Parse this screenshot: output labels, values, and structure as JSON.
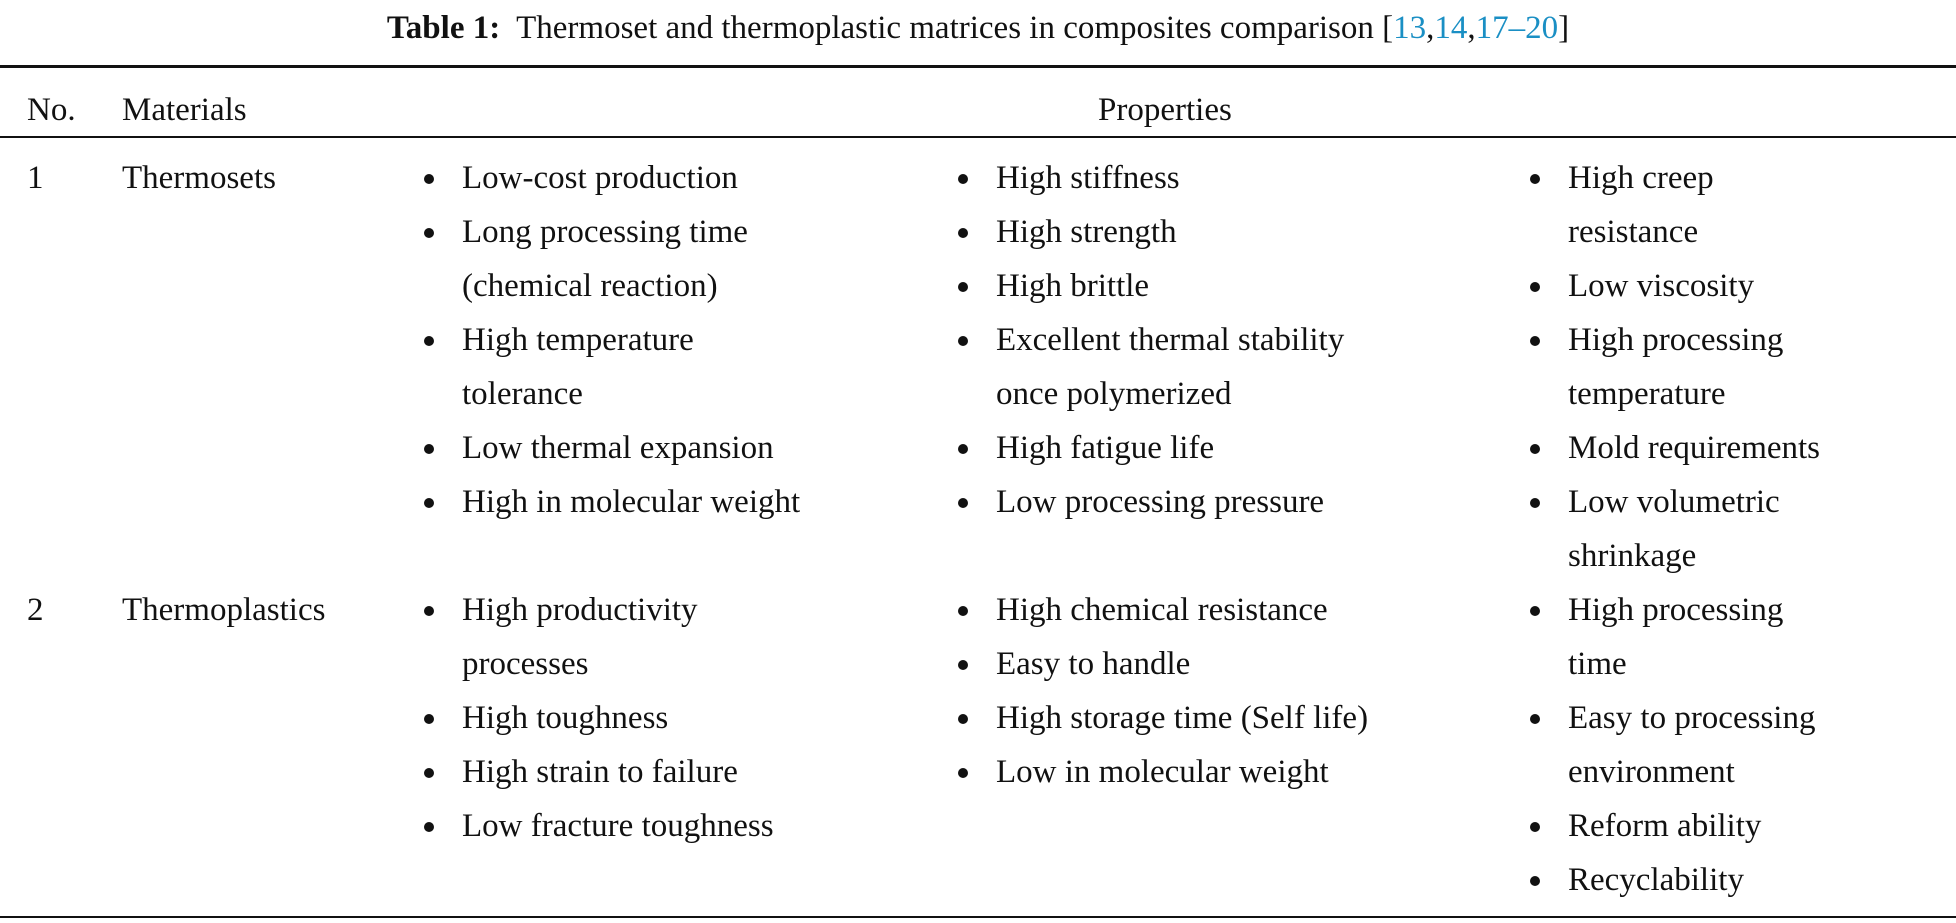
{
  "caption": {
    "label": "Table 1:",
    "text": "Thermoset and thermoplastic matrices in composites comparison",
    "open": "[",
    "refs": [
      "13",
      "14",
      "17–20"
    ],
    "close": "]",
    "cite_color": "#1a8fc4"
  },
  "headers": {
    "no": "No.",
    "materials": "Materials",
    "properties": "Properties"
  },
  "rows": [
    {
      "no": "1",
      "material": "Thermosets",
      "col1": [
        "Low-cost production",
        "Long processing time\n(chemical reaction)",
        "High temperature\ntolerance",
        "Low thermal expansion",
        "High in molecular weight"
      ],
      "col2": [
        "High stiffness",
        "High strength",
        "High brittle",
        "Excellent thermal stability\nonce polymerized",
        "High fatigue life",
        "Low processing pressure"
      ],
      "col3": [
        "High creep\nresistance",
        "Low viscosity",
        "High processing\ntemperature",
        "Mold requirements",
        "Low volumetric\nshrinkage"
      ]
    },
    {
      "no": "2",
      "material": "Thermoplastics",
      "col1": [
        "High productivity\nprocesses",
        "High toughness",
        "High strain to failure",
        "Low fracture toughness"
      ],
      "col2": [
        "High chemical resistance",
        "Easy to handle",
        "High storage time (Self life)",
        "Low in molecular weight"
      ],
      "col3": [
        "High processing\ntime",
        "Easy to processing\nenvironment",
        "Reform ability",
        "Recyclability"
      ]
    }
  ]
}
